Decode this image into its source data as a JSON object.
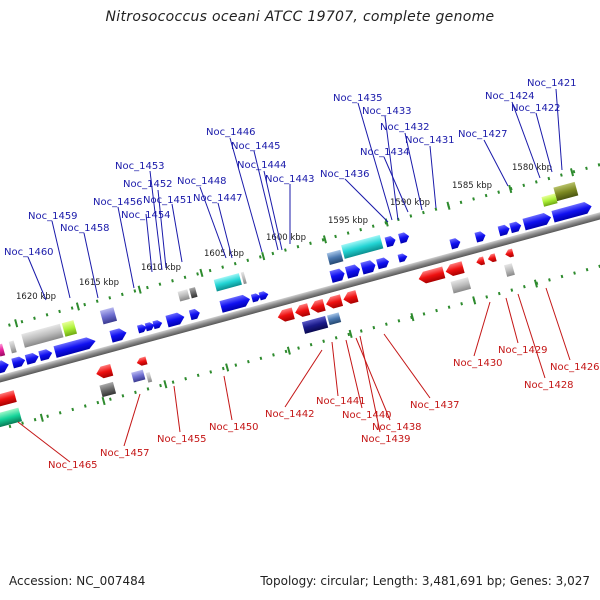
{
  "title": "Nitrosococcus oceani ATCC 19707, complete genome",
  "footer": {
    "accession": "Accession: NC_007484",
    "summary": "Topology: circular; Length: 3,481,691 bp; Genes: 3,027"
  },
  "scale_labels": [
    "1620 kbp",
    "1615 kbp",
    "1610 kbp",
    "1605 kbp",
    "1600 kbp",
    "1595 kbp",
    "1590 kbp",
    "1585 kbp",
    "1580 kbp"
  ],
  "top_strand_genes": [
    "Noc_1460",
    "Noc_1459",
    "Noc_1458",
    "Noc_1456",
    "Noc_1453",
    "Noc_1452",
    "Noc_1454",
    "Noc_1451",
    "Noc_1448",
    "Noc_1447",
    "Noc_1446",
    "Noc_1445",
    "Noc_1444",
    "Noc_1443",
    "Noc_1436",
    "Noc_1435",
    "Noc_1433",
    "Noc_1434",
    "Noc_1432",
    "Noc_1431",
    "Noc_1427",
    "Noc_1424",
    "Noc_1422",
    "Noc_1421"
  ],
  "bottom_strand_genes": [
    "Noc_1465",
    "Noc_1457",
    "Noc_1455",
    "Noc_1450",
    "Noc_1442",
    "Noc_1441",
    "Noc_1440",
    "Noc_1438",
    "Noc_1439",
    "Noc_1437",
    "Noc_1430",
    "Noc_1429",
    "Noc_1428",
    "Noc_1426"
  ],
  "colors": {
    "forward": "#1f1ff0",
    "reverse": "#ee1c1c",
    "backbone": "#8a8a8a",
    "tick": "#2e8b2e",
    "label_top": "#1a1aaa",
    "label_bottom": "#c41616"
  }
}
